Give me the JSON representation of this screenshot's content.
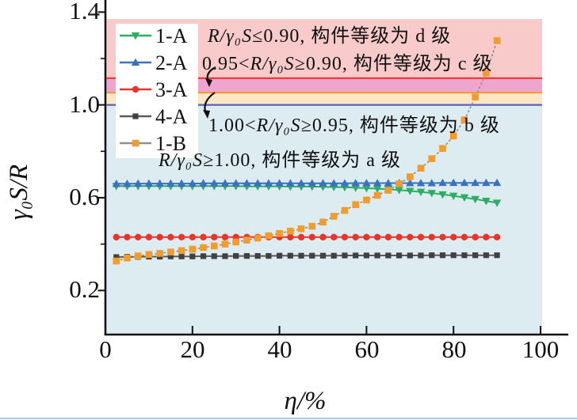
{
  "chart_data": {
    "type": "line",
    "title": "",
    "xlabel": "η/%",
    "ylabel": "γ₀S/R",
    "xlim": [
      0,
      100.5
    ],
    "ylim": [
      0.01,
      1.45
    ],
    "grid": false,
    "legend_position": "upper-left-inside",
    "x_ticks": [
      0,
      20,
      40,
      60,
      80,
      100
    ],
    "x_tick_labels": [
      "0",
      "20",
      "40",
      "60",
      "80",
      "100"
    ],
    "y_ticks": [
      0.2,
      0.6,
      1.0,
      1.4
    ],
    "y_tick_labels": [
      "0.2",
      "0.6",
      "1.0",
      "1.4"
    ],
    "y_minor_ticks": [
      0.4,
      0.8,
      1.2
    ],
    "bands": [
      {
        "label": "grade-d",
        "from": 1.115,
        "to": 1.37,
        "color": "#f8caca"
      },
      {
        "label": "grade-c",
        "from": 1.053,
        "to": 1.115,
        "color": "#efa6ce"
      },
      {
        "label": "grade-b",
        "from": 1.0,
        "to": 1.053,
        "color": "#fbe7c4"
      },
      {
        "label": "grade-a",
        "from": 0.0105,
        "to": 1.0,
        "color": "#dcecf1"
      }
    ],
    "boundary_lines": [
      {
        "value": 1.115,
        "color": "#ee3b33"
      },
      {
        "value": 1.053,
        "color": "#f59a38"
      },
      {
        "value": 1.0,
        "color": "#5a62c4"
      }
    ],
    "x": [
      2.5,
      5,
      7.5,
      10,
      12.5,
      15,
      17.5,
      20,
      22.5,
      25,
      27.5,
      30,
      32.5,
      35,
      37.5,
      40,
      42.5,
      45,
      47.5,
      50,
      52.5,
      55,
      57.5,
      60,
      62.5,
      65,
      67.5,
      70,
      72.5,
      75,
      77.5,
      80,
      82.5,
      85,
      87.5,
      90
    ],
    "series": [
      {
        "name": "1-A",
        "marker": "triangle-down",
        "color": "#2ead63",
        "line_color": "#2ead63",
        "values": [
          0.65,
          0.65,
          0.65,
          0.65,
          0.65,
          0.65,
          0.65,
          0.65,
          0.65,
          0.65,
          0.65,
          0.65,
          0.649,
          0.649,
          0.649,
          0.649,
          0.648,
          0.648,
          0.648,
          0.647,
          0.646,
          0.645,
          0.643,
          0.641,
          0.639,
          0.636,
          0.633,
          0.629,
          0.625,
          0.62,
          0.614,
          0.608,
          0.601,
          0.594,
          0.586,
          0.578
        ]
      },
      {
        "name": "2-A",
        "marker": "triangle-up",
        "color": "#3a72c2",
        "line_color": "#3a72c2",
        "values": [
          0.66,
          0.66,
          0.661,
          0.661,
          0.661,
          0.661,
          0.661,
          0.661,
          0.662,
          0.662,
          0.662,
          0.662,
          0.662,
          0.662,
          0.662,
          0.662,
          0.662,
          0.662,
          0.662,
          0.662,
          0.662,
          0.662,
          0.663,
          0.663,
          0.663,
          0.663,
          0.663,
          0.663,
          0.663,
          0.663,
          0.664,
          0.664,
          0.664,
          0.664,
          0.664,
          0.664
        ]
      },
      {
        "name": "3-A",
        "marker": "circle",
        "color": "#e8352b",
        "line_color": "#e8352b",
        "values": [
          0.43,
          0.43,
          0.43,
          0.43,
          0.43,
          0.43,
          0.43,
          0.43,
          0.43,
          0.43,
          0.43,
          0.43,
          0.43,
          0.43,
          0.43,
          0.43,
          0.43,
          0.43,
          0.43,
          0.43,
          0.43,
          0.43,
          0.43,
          0.43,
          0.43,
          0.43,
          0.43,
          0.43,
          0.43,
          0.43,
          0.43,
          0.43,
          0.43,
          0.43,
          0.43,
          0.43
        ]
      },
      {
        "name": "4-A",
        "marker": "square",
        "color": "#414141",
        "line_color": "#5a5a5a",
        "values": [
          0.344,
          0.345,
          0.345,
          0.346,
          0.346,
          0.347,
          0.347,
          0.347,
          0.348,
          0.348,
          0.348,
          0.349,
          0.349,
          0.349,
          0.349,
          0.35,
          0.35,
          0.35,
          0.35,
          0.35,
          0.35,
          0.351,
          0.351,
          0.351,
          0.351,
          0.351,
          0.351,
          0.351,
          0.351,
          0.352,
          0.352,
          0.352,
          0.352,
          0.352,
          0.352,
          0.352
        ]
      },
      {
        "name": "1-B",
        "marker": "square-large",
        "color": "#f39c2d",
        "line_color": "#8f8f8f",
        "line_dash": "3,2.5",
        "values": [
          0.327,
          0.34,
          0.349,
          0.355,
          0.36,
          0.366,
          0.372,
          0.378,
          0.385,
          0.392,
          0.4,
          0.409,
          0.417,
          0.426,
          0.436,
          0.446,
          0.456,
          0.466,
          0.477,
          0.495,
          0.52,
          0.545,
          0.57,
          0.59,
          0.61,
          0.632,
          0.66,
          0.69,
          0.727,
          0.768,
          0.812,
          0.866,
          0.935,
          1.034,
          1.137,
          1.277
        ]
      }
    ],
    "annotations": [
      {
        "prefix": "",
        "formula": "R/γ₀S",
        "suffix": "≤0.90, ",
        "label": "构件等级为 d 级"
      },
      {
        "prefix": "0.95<",
        "formula": "R/γ₀S",
        "suffix": "≥0.90, ",
        "label": "构件等级为 c 级"
      },
      {
        "prefix": "1.00<",
        "formula": "R/γ₀S",
        "suffix": "≥0.95, ",
        "label": "构件等级为 b 级"
      },
      {
        "prefix": "",
        "formula": "R/γ₀S",
        "suffix": "≥1.00, ",
        "label": "构件等级为 a 级"
      }
    ]
  }
}
